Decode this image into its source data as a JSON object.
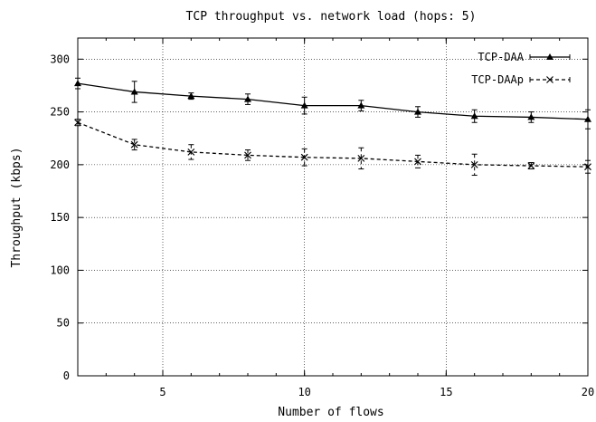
{
  "chart_data": {
    "type": "line",
    "title": "TCP throughput  vs. network load (hops: 5)",
    "xlabel": "Number of flows",
    "ylabel": "Throughput (kbps)",
    "xlim": [
      2,
      20
    ],
    "ylim": [
      0,
      320
    ],
    "xticks": [
      5,
      10,
      15,
      20
    ],
    "yticks": [
      0,
      50,
      100,
      150,
      200,
      250,
      300
    ],
    "grid": true,
    "legend_position": "top-right",
    "series": [
      {
        "name": "TCP-DAA",
        "marker": "triangle",
        "line": "solid",
        "x": [
          2,
          4,
          6,
          8,
          10,
          12,
          14,
          16,
          18,
          20
        ],
        "y": [
          277,
          269,
          265,
          262,
          256,
          256,
          250,
          246,
          245,
          243
        ],
        "err": [
          5,
          10,
          3,
          5,
          8,
          5,
          5,
          6,
          5,
          9
        ]
      },
      {
        "name": "TCP-DAAp",
        "marker": "x",
        "line": "dashed",
        "x": [
          2,
          4,
          6,
          8,
          10,
          12,
          14,
          16,
          18,
          20
        ],
        "y": [
          240,
          219,
          212,
          209,
          207,
          206,
          203,
          200,
          199,
          198
        ],
        "err": [
          3,
          5,
          7,
          5,
          8,
          10,
          6,
          10,
          3,
          6
        ]
      }
    ]
  }
}
